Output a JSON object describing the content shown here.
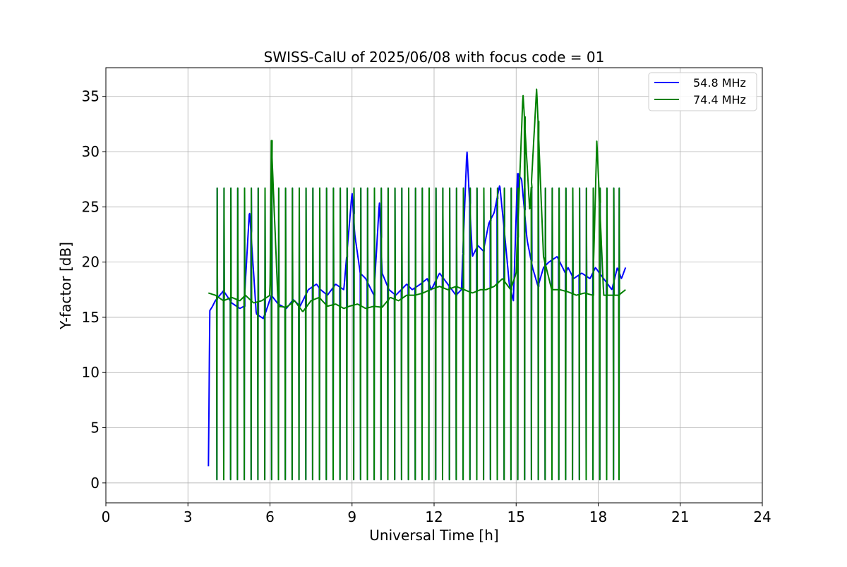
{
  "chart_data": {
    "type": "line",
    "title": "SWISS-CalU of 2025/06/08 with focus code = 01",
    "xlabel": "Universal Time [h]",
    "ylabel": "Y-factor [dB]",
    "xlim": [
      0,
      24
    ],
    "ylim": [
      -1.8,
      37.6
    ],
    "x_ticks": [
      0,
      3,
      6,
      9,
      12,
      15,
      18,
      21,
      24
    ],
    "y_ticks": [
      0,
      5,
      10,
      15,
      20,
      25,
      30,
      35
    ],
    "grid": true,
    "legend_position": "top-right",
    "series": [
      {
        "name": "54.8 MHz",
        "color": "#0000ff",
        "x": [
          3.75,
          3.8,
          3.9,
          4.0,
          4.3,
          4.6,
          4.9,
          5.05,
          5.25,
          5.5,
          5.75,
          5.85,
          6.05,
          6.3,
          6.6,
          6.85,
          7.1,
          7.4,
          7.7,
          7.85,
          8.1,
          8.4,
          8.7,
          9.0,
          9.1,
          9.3,
          9.5,
          9.8,
          10.0,
          10.1,
          10.35,
          10.6,
          11.0,
          11.2,
          11.5,
          11.75,
          11.9,
          12.2,
          12.5,
          12.8,
          13.0,
          13.2,
          13.4,
          13.6,
          13.8,
          14.0,
          14.2,
          14.4,
          14.6,
          14.75,
          14.9,
          15.05,
          15.2,
          15.4,
          15.6,
          15.8,
          16.0,
          16.2,
          16.5,
          16.8,
          16.9,
          17.1,
          17.4,
          17.7,
          17.9,
          18.2,
          18.5,
          18.7,
          18.85,
          19.0
        ],
        "y": [
          1.5,
          15.6,
          16.0,
          16.5,
          17.4,
          16.3,
          15.8,
          16.0,
          24.7,
          15.3,
          14.9,
          15.5,
          17.0,
          16.2,
          15.8,
          16.6,
          16.0,
          17.5,
          18.0,
          17.5,
          17.0,
          18.0,
          17.5,
          26.3,
          22.5,
          19.0,
          18.5,
          17.0,
          25.5,
          19.0,
          17.5,
          17.0,
          18.0,
          17.5,
          18.0,
          18.5,
          17.5,
          19.0,
          18.0,
          17.0,
          17.5,
          30.2,
          20.5,
          21.5,
          21.0,
          23.5,
          24.5,
          27.0,
          22.0,
          18.0,
          16.5,
          28.0,
          27.5,
          22.0,
          19.5,
          17.8,
          19.5,
          20.0,
          20.5,
          19.0,
          19.5,
          18.5,
          19.0,
          18.5,
          19.5,
          18.5,
          17.5,
          19.5,
          18.5,
          19.5
        ]
      },
      {
        "name": "74.4 MHz",
        "color": "#008000",
        "x": [
          3.75,
          4.0,
          4.3,
          4.6,
          4.9,
          5.1,
          5.4,
          5.7,
          6.0,
          6.05,
          6.3,
          6.6,
          6.9,
          7.2,
          7.5,
          7.8,
          8.1,
          8.4,
          8.7,
          8.9,
          9.2,
          9.5,
          9.8,
          10.1,
          10.4,
          10.7,
          11.0,
          11.3,
          11.6,
          11.85,
          12.2,
          12.5,
          12.8,
          13.1,
          13.4,
          13.7,
          13.9,
          14.2,
          14.5,
          14.8,
          15.0,
          15.25,
          15.5,
          15.75,
          16.0,
          16.3,
          16.6,
          16.9,
          17.2,
          17.5,
          17.8,
          17.95,
          18.2,
          18.5,
          18.75,
          18.9,
          19.0
        ],
        "y": [
          17.2,
          17.0,
          16.5,
          16.8,
          16.5,
          17.0,
          16.3,
          16.5,
          17.0,
          31.0,
          16.0,
          15.9,
          16.5,
          15.5,
          16.5,
          16.8,
          16.0,
          16.2,
          15.8,
          16.0,
          16.2,
          15.8,
          16.0,
          15.9,
          16.8,
          16.5,
          17.0,
          17.0,
          17.2,
          17.5,
          17.8,
          17.5,
          17.8,
          17.5,
          17.2,
          17.5,
          17.5,
          17.8,
          18.5,
          17.5,
          19.0,
          35.3,
          24.5,
          35.8,
          20.5,
          17.5,
          17.5,
          17.3,
          17.0,
          17.2,
          17.0,
          31.0,
          17.0,
          17.0,
          17.0,
          17.3,
          17.5
        ]
      }
    ]
  }
}
